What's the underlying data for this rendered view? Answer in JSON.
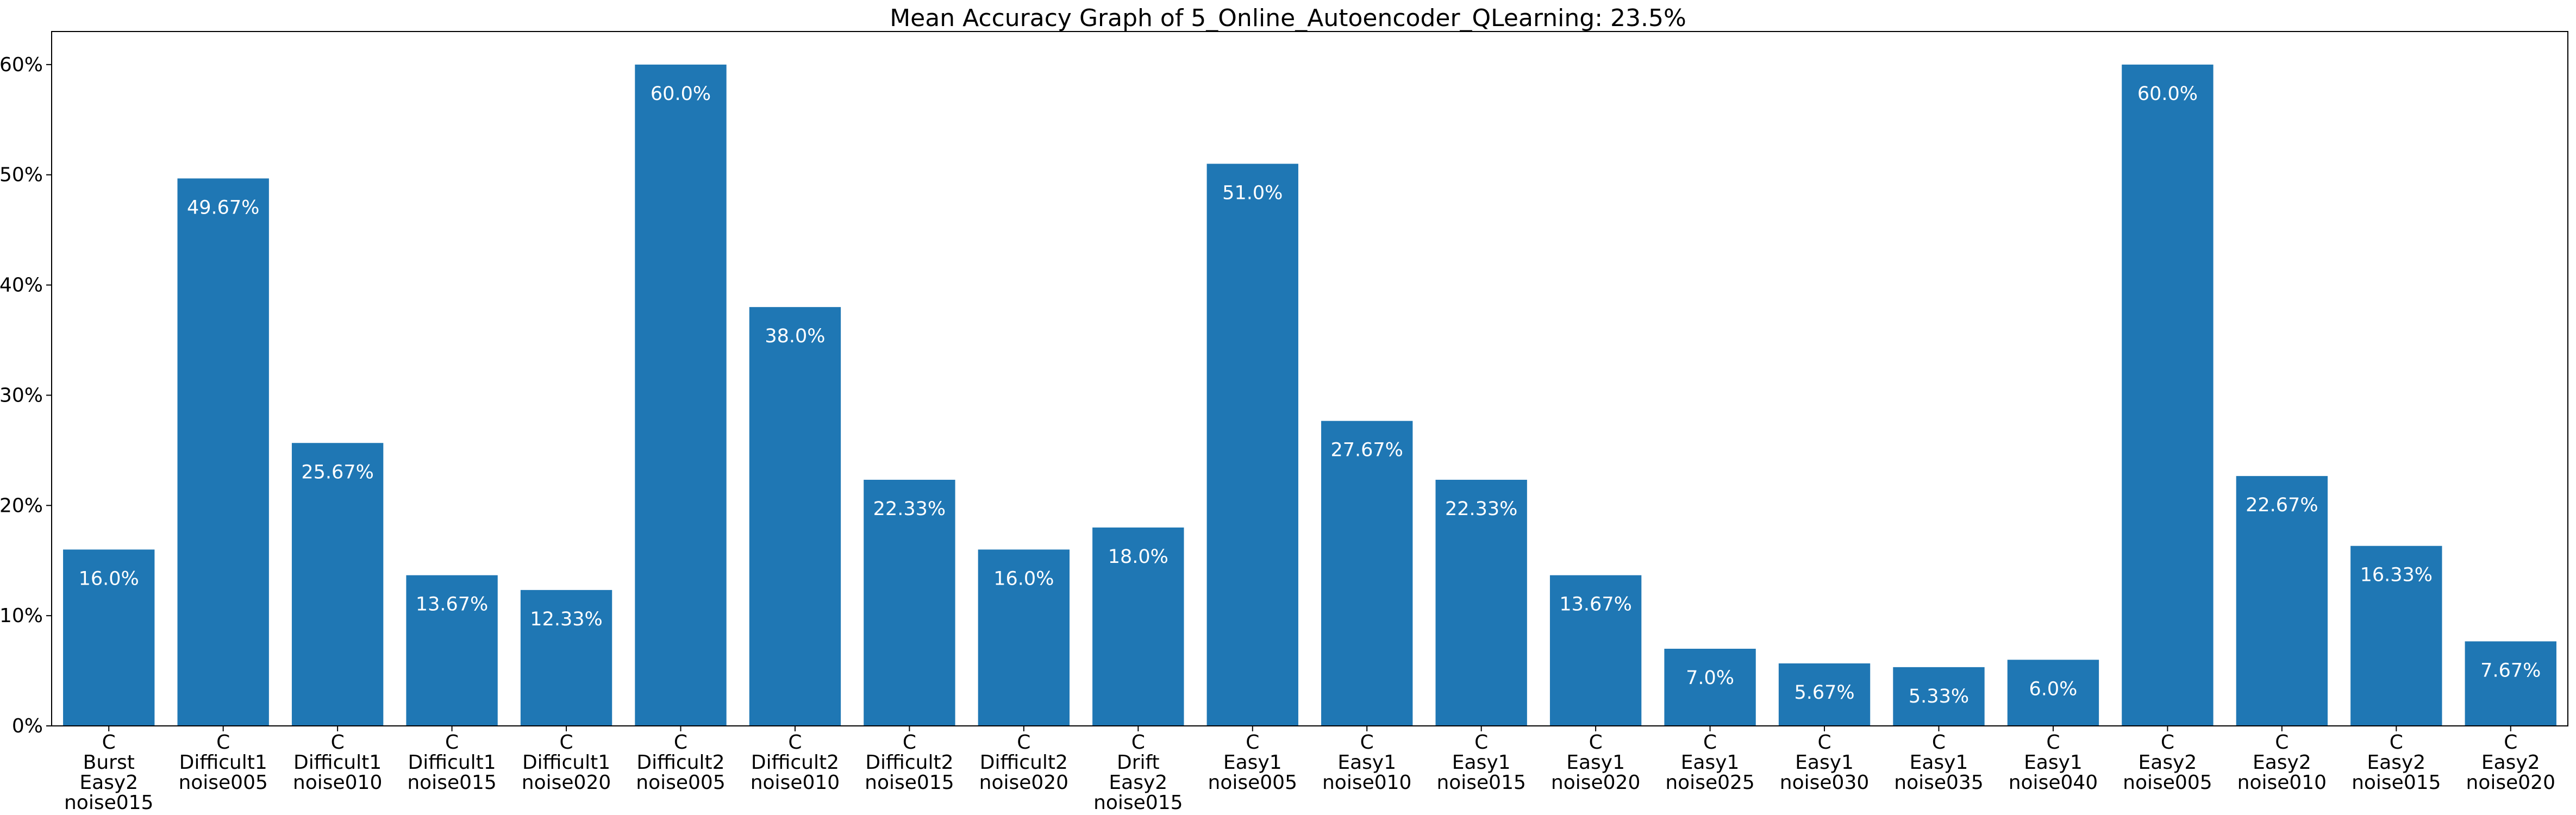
{
  "chart_data": {
    "type": "bar",
    "title": "Mean Accuracy Graph of 5_Online_Autoencoder_QLearning: 23.5%",
    "xlabel": "",
    "ylabel": "",
    "ylim": [
      0,
      63
    ],
    "y_ticks": [
      0,
      10,
      20,
      30,
      40,
      50,
      60
    ],
    "y_tick_labels": [
      "0%",
      "10%",
      "20%",
      "30%",
      "40%",
      "50%",
      "60%"
    ],
    "bar_color": "#1f77b4",
    "grid": false,
    "categories": [
      [
        "C",
        "Burst",
        "Easy2",
        "noise015"
      ],
      [
        "C",
        "Difficult1",
        "noise005"
      ],
      [
        "C",
        "Difficult1",
        "noise010"
      ],
      [
        "C",
        "Difficult1",
        "noise015"
      ],
      [
        "C",
        "Difficult1",
        "noise020"
      ],
      [
        "C",
        "Difficult2",
        "noise005"
      ],
      [
        "C",
        "Difficult2",
        "noise010"
      ],
      [
        "C",
        "Difficult2",
        "noise015"
      ],
      [
        "C",
        "Difficult2",
        "noise020"
      ],
      [
        "C",
        "Drift",
        "Easy2",
        "noise015"
      ],
      [
        "C",
        "Easy1",
        "noise005"
      ],
      [
        "C",
        "Easy1",
        "noise010"
      ],
      [
        "C",
        "Easy1",
        "noise015"
      ],
      [
        "C",
        "Easy1",
        "noise020"
      ],
      [
        "C",
        "Easy1",
        "noise025"
      ],
      [
        "C",
        "Easy1",
        "noise030"
      ],
      [
        "C",
        "Easy1",
        "noise035"
      ],
      [
        "C",
        "Easy1",
        "noise040"
      ],
      [
        "C",
        "Easy2",
        "noise005"
      ],
      [
        "C",
        "Easy2",
        "noise010"
      ],
      [
        "C",
        "Easy2",
        "noise015"
      ],
      [
        "C",
        "Easy2",
        "noise020"
      ]
    ],
    "values": [
      16.0,
      49.67,
      25.67,
      13.67,
      12.33,
      60.0,
      38.0,
      22.33,
      16.0,
      18.0,
      51.0,
      27.67,
      22.33,
      13.67,
      7.0,
      5.67,
      5.33,
      6.0,
      60.0,
      22.67,
      16.33,
      7.67
    ],
    "value_labels": [
      "16.0%",
      "49.67%",
      "25.67%",
      "13.67%",
      "12.33%",
      "60.0%",
      "38.0%",
      "22.33%",
      "16.0%",
      "18.0%",
      "51.0%",
      "27.67%",
      "22.33%",
      "13.67%",
      "7.0%",
      "5.67%",
      "5.33%",
      "6.0%",
      "60.0%",
      "22.67%",
      "16.33%",
      "7.67%"
    ]
  }
}
